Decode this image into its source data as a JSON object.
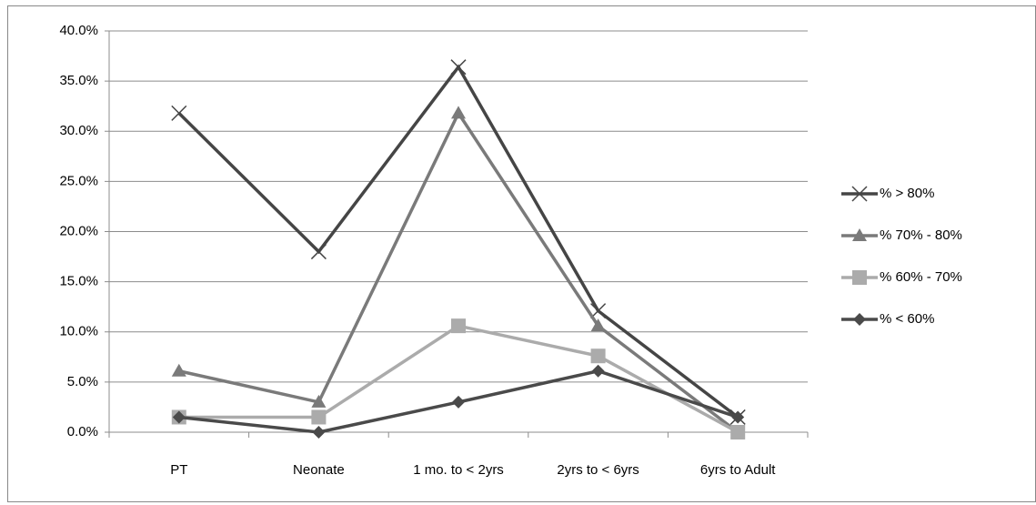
{
  "chart_data": {
    "type": "line",
    "categories": [
      "PT",
      "Neonate",
      "1 mo. to < 2yrs",
      "2yrs to < 6yrs",
      "6yrs to Adult"
    ],
    "series": [
      {
        "name": "% > 80%",
        "color": "#454545",
        "marker": "x",
        "values": [
          31.8,
          18.0,
          36.4,
          12.1,
          1.5
        ]
      },
      {
        "name": "% 70% - 80%",
        "color": "#7a7a7a",
        "marker": "triangle",
        "values": [
          6.1,
          3.0,
          31.8,
          10.6,
          0
        ]
      },
      {
        "name": "% 60% - 70%",
        "color": "#ababab",
        "marker": "square",
        "values": [
          1.5,
          1.5,
          10.6,
          7.6,
          0
        ]
      },
      {
        "name": "% < 60%",
        "color": "#4a4a4a",
        "marker": "diamond",
        "values": [
          1.5,
          0,
          3.0,
          6.1,
          1.5
        ]
      }
    ],
    "ylim": [
      0,
      40
    ],
    "yticks": [
      {
        "value": 0,
        "label": "0.0%"
      },
      {
        "value": 5,
        "label": "5.0%"
      },
      {
        "value": 10,
        "label": "10.0%"
      },
      {
        "value": 15,
        "label": "15.0%"
      },
      {
        "value": 20,
        "label": "20.0%"
      },
      {
        "value": 25,
        "label": "25.0%"
      },
      {
        "value": 30,
        "label": "30.0%"
      },
      {
        "value": 35,
        "label": "35.0%"
      },
      {
        "value": 40,
        "label": "40.0%"
      }
    ],
    "grid": true,
    "legend": "right"
  }
}
